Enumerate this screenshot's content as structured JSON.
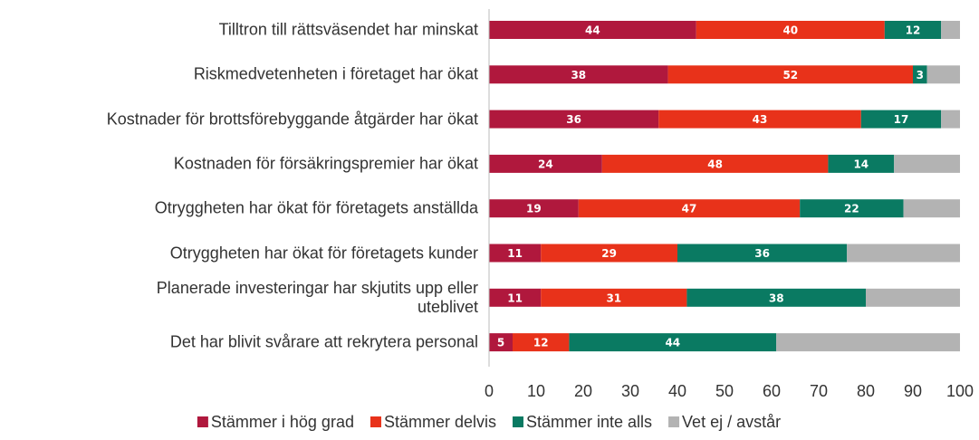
{
  "chart_data": {
    "type": "stacked-bar-horizontal",
    "categories": [
      "Tilltron till rättsväsendet har minskat",
      "Riskmedvetenheten i företaget har ökat",
      "Kostnader för brottsförebyggande åtgärder har ökat",
      "Kostnaden för försäkringspremier har ökat",
      "Otryggheten har ökat för företagets anställda",
      "Otryggheten har ökat för företagets kunder",
      "Planerade investeringar har skjutits upp eller\nuteblivet",
      "Det har blivit svårare att rekrytera personal"
    ],
    "series": [
      {
        "name": "Stämmer i hög grad",
        "color": "#b0183d",
        "values": [
          44,
          38,
          36,
          24,
          19,
          11,
          11,
          5
        ]
      },
      {
        "name": "Stämmer delvis",
        "color": "#e8321a",
        "values": [
          40,
          52,
          43,
          48,
          47,
          29,
          31,
          12
        ]
      },
      {
        "name": "Stämmer inte alls",
        "color": "#0a7a62",
        "values": [
          12,
          3,
          17,
          14,
          22,
          36,
          38,
          44
        ]
      },
      {
        "name": "Vet ej / avstår",
        "color": "#b3b3b3",
        "values": [
          4,
          7,
          4,
          14,
          12,
          24,
          20,
          39
        ],
        "labels": false
      }
    ],
    "xlim": [
      0,
      100
    ],
    "xticks": [
      0,
      10,
      20,
      30,
      40,
      50,
      60,
      70,
      80,
      90,
      100
    ],
    "legend": "bottom"
  }
}
